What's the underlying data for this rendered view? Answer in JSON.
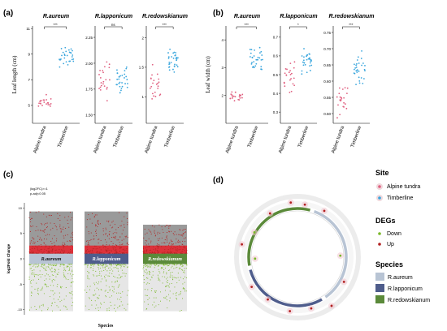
{
  "panel_labels": {
    "a": "(a)",
    "b": "(b)",
    "c": "(c)",
    "d": "(d)"
  },
  "groups": [
    "Alpine tundra",
    "Timberline"
  ],
  "colors": {
    "alpine": "#e06080",
    "timberline": "#3aa6dd",
    "down": "#7ab829",
    "up": "#b22222",
    "r_aureum": "#b8c4d4",
    "r_lapponicum": "#4f5d8c",
    "r_redowskianum": "#5b8a3a",
    "volcano_top": "#9a9a9a",
    "volcano_bottom": "#e6e6e6",
    "red_zone": "#e8202a"
  },
  "chart_data": [
    {
      "type": "scatter",
      "panel": "a",
      "title": "R.aureum",
      "ylabel": "Leaf length (cm)",
      "yticks": [
        5,
        7,
        9,
        11
      ],
      "ylim": [
        3.6,
        11.2
      ],
      "significance": "***",
      "series": [
        {
          "name": "Alpine tundra",
          "mean": 5.3,
          "sd": 0.45,
          "n": 22
        },
        {
          "name": "Timberline",
          "mean": 8.9,
          "sd": 0.65,
          "n": 30
        }
      ]
    },
    {
      "type": "scatter",
      "panel": "a",
      "title": "R.lapponicum",
      "ylabel": "",
      "yticks": [
        1.5,
        1.75,
        2.0,
        2.25
      ],
      "ylim": [
        1.42,
        2.36
      ],
      "significance": "ns",
      "series": [
        {
          "name": "Alpine tundra",
          "mean": 1.85,
          "sd": 0.17,
          "n": 22
        },
        {
          "name": "Timberline",
          "mean": 1.87,
          "sd": 0.12,
          "n": 30
        }
      ]
    },
    {
      "type": "scatter",
      "panel": "a",
      "title": "R.redowskianum",
      "ylabel": "",
      "yticks": [
        1.0,
        1.5,
        2.0
      ],
      "ylim": [
        0.55,
        2.2
      ],
      "significance": "***",
      "series": [
        {
          "name": "Alpine tundra",
          "mean": 1.2,
          "sd": 0.25,
          "n": 22
        },
        {
          "name": "Timberline",
          "mean": 1.62,
          "sd": 0.15,
          "n": 30
        }
      ]
    },
    {
      "type": "scatter",
      "panel": "b",
      "title": "R.aureum",
      "ylabel": "Leaf width (cm)",
      "yticks": [
        2,
        3,
        4
      ],
      "ylim": [
        1.0,
        4.5
      ],
      "significance": "***",
      "series": [
        {
          "name": "Alpine tundra",
          "mean": 1.95,
          "sd": 0.22,
          "n": 22
        },
        {
          "name": "Timberline",
          "mean": 3.3,
          "sd": 0.35,
          "n": 30
        }
      ]
    },
    {
      "type": "scatter",
      "panel": "b",
      "title": "R.lapponicum",
      "ylabel": "",
      "yticks": [
        0.3,
        0.4,
        0.5,
        0.6,
        0.7
      ],
      "ylim": [
        0.24,
        0.76
      ],
      "significance": "*",
      "series": [
        {
          "name": "Alpine tundra",
          "mean": 0.49,
          "sd": 0.07,
          "n": 22
        },
        {
          "name": "Timberline",
          "mean": 0.575,
          "sd": 0.055,
          "n": 30
        }
      ]
    },
    {
      "type": "scatter",
      "panel": "b",
      "title": "R.redowskianum",
      "ylabel": "",
      "yticks": [
        0.5,
        0.55,
        0.6,
        0.65,
        0.7,
        0.75
      ],
      "ylim": [
        0.47,
        0.77
      ],
      "significance": "***",
      "series": [
        {
          "name": "Alpine tundra",
          "mean": 0.545,
          "sd": 0.04,
          "n": 22
        },
        {
          "name": "Timberline",
          "mean": 0.64,
          "sd": 0.04,
          "n": 30
        }
      ]
    },
    {
      "type": "scatter",
      "panel": "c",
      "subtype": "volcano-strip",
      "ylabel": "log2Fold Change",
      "xlabel": "Species",
      "yticks": [
        -10,
        -5,
        0,
        5,
        10
      ],
      "ylim": [
        -11,
        11
      ],
      "annotation": [
        "|log2FC|>=1",
        "p-adj<0.05"
      ],
      "categories": [
        "R.aureum",
        "R.lapponicum",
        "R.redowskianum"
      ],
      "ranges": [
        {
          "up_max": 9.3,
          "down_min": -10.3
        },
        {
          "up_max": 9.3,
          "down_min": -10.3
        },
        {
          "up_max": 6.7,
          "down_min": -10.3
        }
      ]
    },
    {
      "type": "scatter",
      "panel": "d",
      "subtype": "circos",
      "segments": [
        {
          "name": "R.aureum",
          "start_deg": 20,
          "end_deg": 145
        },
        {
          "name": "R.lapponicum",
          "start_deg": 150,
          "end_deg": 255
        },
        {
          "name": "R.redowskianum",
          "start_deg": 260,
          "end_deg": 15
        }
      ],
      "points": [
        {
          "deg": 328,
          "r": 1.06,
          "type": "Up"
        },
        {
          "deg": 353,
          "r": 1.13,
          "type": "Up"
        },
        {
          "deg": 8,
          "r": 1.09,
          "type": "Up"
        },
        {
          "deg": 30,
          "r": 1.1,
          "type": "Up"
        },
        {
          "deg": 88,
          "r": 0.88,
          "type": "Down"
        },
        {
          "deg": 118,
          "r": 1.08,
          "type": "Up"
        },
        {
          "deg": 145,
          "r": 1.22,
          "type": "Up"
        },
        {
          "deg": 165,
          "r": 1.09,
          "type": "Up"
        },
        {
          "deg": 188,
          "r": 1.12,
          "type": "Up"
        },
        {
          "deg": 215,
          "r": 1.06,
          "type": "Up"
        },
        {
          "deg": 237,
          "r": 1.12,
          "type": "Up"
        },
        {
          "deg": 268,
          "r": 0.87,
          "type": "Down"
        },
        {
          "deg": 283,
          "r": 1.17,
          "type": "Up"
        },
        {
          "deg": 300,
          "r": 1.02,
          "type": "Down"
        }
      ]
    }
  ],
  "legend": {
    "site_title": "Site",
    "site_items": [
      "Alpine tundra",
      "Timberline"
    ],
    "degs_title": "DEGs",
    "degs_items": [
      "Down",
      "Up"
    ],
    "species_title": "Species",
    "species_items": [
      "R.aureum",
      "R.lapponicum",
      "R.redowskianum"
    ]
  }
}
